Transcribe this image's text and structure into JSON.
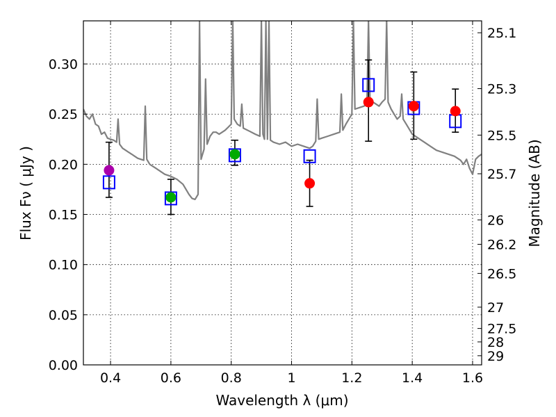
{
  "chart_data": {
    "type": "scatter",
    "xlabel": "Wavelength  λ (μm)",
    "ylabel": "Flux  Fν  ( μJy )",
    "y2label": "Magnitude (AB)",
    "xlim": [
      0.31,
      1.63
    ],
    "ylim": [
      0.0,
      0.343
    ],
    "grid": true,
    "x_ticks": [
      {
        "v": 0.4,
        "label": "0.4"
      },
      {
        "v": 0.6,
        "label": "0.6"
      },
      {
        "v": 0.8,
        "label": "0.8"
      },
      {
        "v": 1.0,
        "label": "1"
      },
      {
        "v": 1.2,
        "label": "1.2"
      },
      {
        "v": 1.4,
        "label": "1.4"
      },
      {
        "v": 1.6,
        "label": "1.6"
      }
    ],
    "y_ticks": [
      {
        "v": 0.0,
        "label": "0.00"
      },
      {
        "v": 0.05,
        "label": "0.05"
      },
      {
        "v": 0.1,
        "label": "0.10"
      },
      {
        "v": 0.15,
        "label": "0.15"
      },
      {
        "v": 0.2,
        "label": "0.20"
      },
      {
        "v": 0.25,
        "label": "0.25"
      },
      {
        "v": 0.3,
        "label": "0.30"
      }
    ],
    "mag_ticks": [
      {
        "mag": 25.1,
        "label": "25.1"
      },
      {
        "mag": 25.3,
        "label": "25.3"
      },
      {
        "mag": 25.5,
        "label": "25.5"
      },
      {
        "mag": 25.7,
        "label": "25.7"
      },
      {
        "mag": 26.0,
        "label": "26"
      },
      {
        "mag": 26.2,
        "label": "26.2"
      },
      {
        "mag": 26.5,
        "label": "26.5"
      },
      {
        "mag": 27.0,
        "label": "27"
      },
      {
        "mag": 27.5,
        "label": "27.5"
      },
      {
        "mag": 28.0,
        "label": "28"
      },
      {
        "mag": 29.0,
        "label": "29"
      }
    ],
    "colors": {
      "template": "#808080",
      "model": "#0000ff",
      "err": "#000000",
      "grid": "#000000"
    },
    "template_spectrum": [
      [
        0.31,
        0.255
      ],
      [
        0.32,
        0.248
      ],
      [
        0.33,
        0.245
      ],
      [
        0.34,
        0.25
      ],
      [
        0.35,
        0.24
      ],
      [
        0.36,
        0.238
      ],
      [
        0.37,
        0.23
      ],
      [
        0.38,
        0.232
      ],
      [
        0.39,
        0.226
      ],
      [
        0.4,
        0.225
      ],
      [
        0.41,
        0.224
      ],
      [
        0.42,
        0.222
      ],
      [
        0.425,
        0.245
      ],
      [
        0.43,
        0.22
      ],
      [
        0.44,
        0.216
      ],
      [
        0.45,
        0.214
      ],
      [
        0.46,
        0.212
      ],
      [
        0.47,
        0.21
      ],
      [
        0.48,
        0.208
      ],
      [
        0.49,
        0.206
      ],
      [
        0.5,
        0.205
      ],
      [
        0.51,
        0.204
      ],
      [
        0.515,
        0.258
      ],
      [
        0.52,
        0.205
      ],
      [
        0.53,
        0.2
      ],
      [
        0.55,
        0.196
      ],
      [
        0.57,
        0.192
      ],
      [
        0.58,
        0.19
      ],
      [
        0.6,
        0.188
      ],
      [
        0.62,
        0.185
      ],
      [
        0.64,
        0.18
      ],
      [
        0.65,
        0.175
      ],
      [
        0.66,
        0.17
      ],
      [
        0.67,
        0.166
      ],
      [
        0.68,
        0.165
      ],
      [
        0.69,
        0.17
      ],
      [
        0.695,
        0.343
      ],
      [
        0.7,
        0.205
      ],
      [
        0.71,
        0.215
      ],
      [
        0.715,
        0.285
      ],
      [
        0.72,
        0.22
      ],
      [
        0.73,
        0.228
      ],
      [
        0.74,
        0.232
      ],
      [
        0.75,
        0.232
      ],
      [
        0.76,
        0.23
      ],
      [
        0.77,
        0.232
      ],
      [
        0.78,
        0.234
      ],
      [
        0.79,
        0.237
      ],
      [
        0.8,
        0.24
      ],
      [
        0.805,
        0.343
      ],
      [
        0.81,
        0.245
      ],
      [
        0.82,
        0.24
      ],
      [
        0.83,
        0.238
      ],
      [
        0.835,
        0.26
      ],
      [
        0.84,
        0.236
      ],
      [
        0.86,
        0.233
      ],
      [
        0.88,
        0.23
      ],
      [
        0.895,
        0.228
      ],
      [
        0.9,
        0.343
      ],
      [
        0.905,
        0.23
      ],
      [
        0.91,
        0.225
      ],
      [
        0.915,
        0.343
      ],
      [
        0.92,
        0.225
      ],
      [
        0.925,
        0.343
      ],
      [
        0.93,
        0.224
      ],
      [
        0.94,
        0.222
      ],
      [
        0.96,
        0.22
      ],
      [
        0.98,
        0.222
      ],
      [
        1.0,
        0.218
      ],
      [
        1.02,
        0.22
      ],
      [
        1.04,
        0.218
      ],
      [
        1.06,
        0.216
      ],
      [
        1.07,
        0.218
      ],
      [
        1.08,
        0.223
      ],
      [
        1.085,
        0.265
      ],
      [
        1.09,
        0.225
      ],
      [
        1.1,
        0.226
      ],
      [
        1.12,
        0.228
      ],
      [
        1.14,
        0.23
      ],
      [
        1.16,
        0.232
      ],
      [
        1.165,
        0.27
      ],
      [
        1.17,
        0.234
      ],
      [
        1.18,
        0.24
      ],
      [
        1.19,
        0.245
      ],
      [
        1.2,
        0.25
      ],
      [
        1.205,
        0.343
      ],
      [
        1.21,
        0.255
      ],
      [
        1.22,
        0.256
      ],
      [
        1.24,
        0.258
      ],
      [
        1.25,
        0.26
      ],
      [
        1.255,
        0.343
      ],
      [
        1.26,
        0.262
      ],
      [
        1.27,
        0.262
      ],
      [
        1.28,
        0.26
      ],
      [
        1.29,
        0.258
      ],
      [
        1.3,
        0.262
      ],
      [
        1.31,
        0.265
      ],
      [
        1.315,
        0.343
      ],
      [
        1.32,
        0.262
      ],
      [
        1.33,
        0.255
      ],
      [
        1.34,
        0.25
      ],
      [
        1.35,
        0.245
      ],
      [
        1.36,
        0.248
      ],
      [
        1.365,
        0.27
      ],
      [
        1.37,
        0.245
      ],
      [
        1.38,
        0.24
      ],
      [
        1.4,
        0.23
      ],
      [
        1.42,
        0.226
      ],
      [
        1.44,
        0.222
      ],
      [
        1.46,
        0.218
      ],
      [
        1.48,
        0.214
      ],
      [
        1.5,
        0.212
      ],
      [
        1.52,
        0.21
      ],
      [
        1.54,
        0.208
      ],
      [
        1.56,
        0.204
      ],
      [
        1.57,
        0.2
      ],
      [
        1.58,
        0.205
      ],
      [
        1.59,
        0.196
      ],
      [
        1.6,
        0.19
      ],
      [
        1.61,
        0.205
      ],
      [
        1.62,
        0.208
      ],
      [
        1.63,
        0.21
      ]
    ],
    "model_points": [
      {
        "x": 0.395,
        "y": 0.182
      },
      {
        "x": 0.6,
        "y": 0.166
      },
      {
        "x": 0.812,
        "y": 0.209
      },
      {
        "x": 1.06,
        "y": 0.208
      },
      {
        "x": 1.255,
        "y": 0.279
      },
      {
        "x": 1.405,
        "y": 0.256
      },
      {
        "x": 1.543,
        "y": 0.243
      }
    ],
    "observed_points": [
      {
        "x": 0.395,
        "y": 0.194,
        "err_low": 0.167,
        "err_high": 0.222,
        "color": "#aa00aa"
      },
      {
        "x": 0.6,
        "y": 0.167,
        "err_low": 0.15,
        "err_high": 0.185,
        "color": "#00aa00"
      },
      {
        "x": 0.812,
        "y": 0.21,
        "err_low": 0.199,
        "err_high": 0.224,
        "color": "#00aa00"
      },
      {
        "x": 1.06,
        "y": 0.181,
        "err_low": 0.158,
        "err_high": 0.204,
        "color": "#ff0000"
      },
      {
        "x": 1.255,
        "y": 0.262,
        "err_low": 0.223,
        "err_high": 0.304,
        "color": "#ff0000"
      },
      {
        "x": 1.405,
        "y": 0.258,
        "err_low": 0.225,
        "err_high": 0.292,
        "color": "#ff0000"
      },
      {
        "x": 1.543,
        "y": 0.253,
        "err_low": 0.232,
        "err_high": 0.275,
        "color": "#ff0000"
      }
    ]
  }
}
